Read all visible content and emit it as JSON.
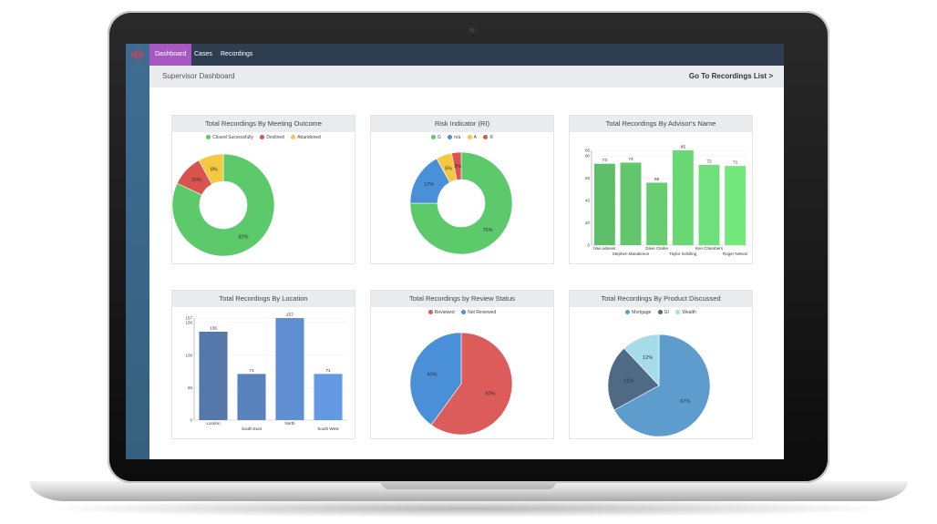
{
  "nav": {
    "items": [
      {
        "label": "Dashboard",
        "active": true
      },
      {
        "label": "Cases",
        "active": false
      },
      {
        "label": "Recordings",
        "active": false
      }
    ]
  },
  "header": {
    "page_title": "Supervisor Dashboard",
    "recordings_link": "Go To Recordings List >"
  },
  "colors": {
    "topbar": "#2f3d51",
    "active_tab": "#a759c1",
    "sidebar": "#3e6d92",
    "green": "#5cc96b",
    "red": "#d9534f",
    "yellow": "#f5c842",
    "blue": "#4a90d9"
  },
  "chart_data": [
    {
      "type": "pie",
      "variant": "donut",
      "title": "Total Recordings By Meeting Outcome",
      "categories": [
        "Closed Successfully",
        "Declined",
        "Abandoned"
      ],
      "values": [
        82,
        10,
        8
      ],
      "labels": [
        "82%",
        "10%",
        "8%"
      ],
      "colors": [
        "#5cc96b",
        "#d9534f",
        "#f5c842"
      ],
      "legend": "top"
    },
    {
      "type": "pie",
      "variant": "donut",
      "title": "Risk Indicator (RI)",
      "categories": [
        "G",
        "n/a",
        "A",
        "R"
      ],
      "values": [
        75,
        17,
        5,
        3
      ],
      "labels": [
        "75%",
        "17%",
        "5%",
        "3%"
      ],
      "colors": [
        "#5cc96b",
        "#4a90d9",
        "#f5c842",
        "#d9534f"
      ],
      "legend": "top"
    },
    {
      "type": "bar",
      "title": "Total Recordings By Advisor's Name",
      "categories": [
        "blue.adviser",
        "Stephen Manderson",
        "Dave Clarke",
        "Taylor Schilling",
        "Ken Chambers",
        "Roger Nelson"
      ],
      "values": [
        73,
        74,
        56,
        85,
        72,
        71
      ],
      "ylim": [
        0,
        85
      ],
      "yticks": [
        0,
        20,
        40,
        60,
        80,
        85
      ],
      "colors": [
        "#5fbe6a",
        "#62c66d",
        "#66ce71",
        "#6bd876",
        "#6ee079",
        "#72e87d"
      ]
    },
    {
      "type": "bar",
      "title": "Total Recordings By Location",
      "categories": [
        "London",
        "South East",
        "North",
        "South West"
      ],
      "values": [
        136,
        71,
        157,
        71
      ],
      "ylim": [
        0,
        157
      ],
      "yticks": [
        0,
        50,
        100,
        150,
        157
      ],
      "colors": [
        "#5577aa",
        "#5a82bd",
        "#5f8ed2",
        "#6398e2"
      ]
    },
    {
      "type": "pie",
      "title": "Total Recordings by Review Status",
      "categories": [
        "Reviewed",
        "Not Reviewed"
      ],
      "values": [
        60,
        40
      ],
      "labels": [
        "60%",
        "40%"
      ],
      "colors": [
        "#dc5b5b",
        "#4a90d9"
      ],
      "legend": "top"
    },
    {
      "type": "pie",
      "title": "Total Recordings By Product Discussed",
      "categories": [
        "Mortgage",
        "GI",
        "Wealth"
      ],
      "values": [
        67,
        21,
        12
      ],
      "labels": [
        "67%",
        "21%",
        "12%"
      ],
      "colors": [
        "#5d9ccc",
        "#4e6a85",
        "#a6dbe8"
      ],
      "legend": "top"
    }
  ]
}
